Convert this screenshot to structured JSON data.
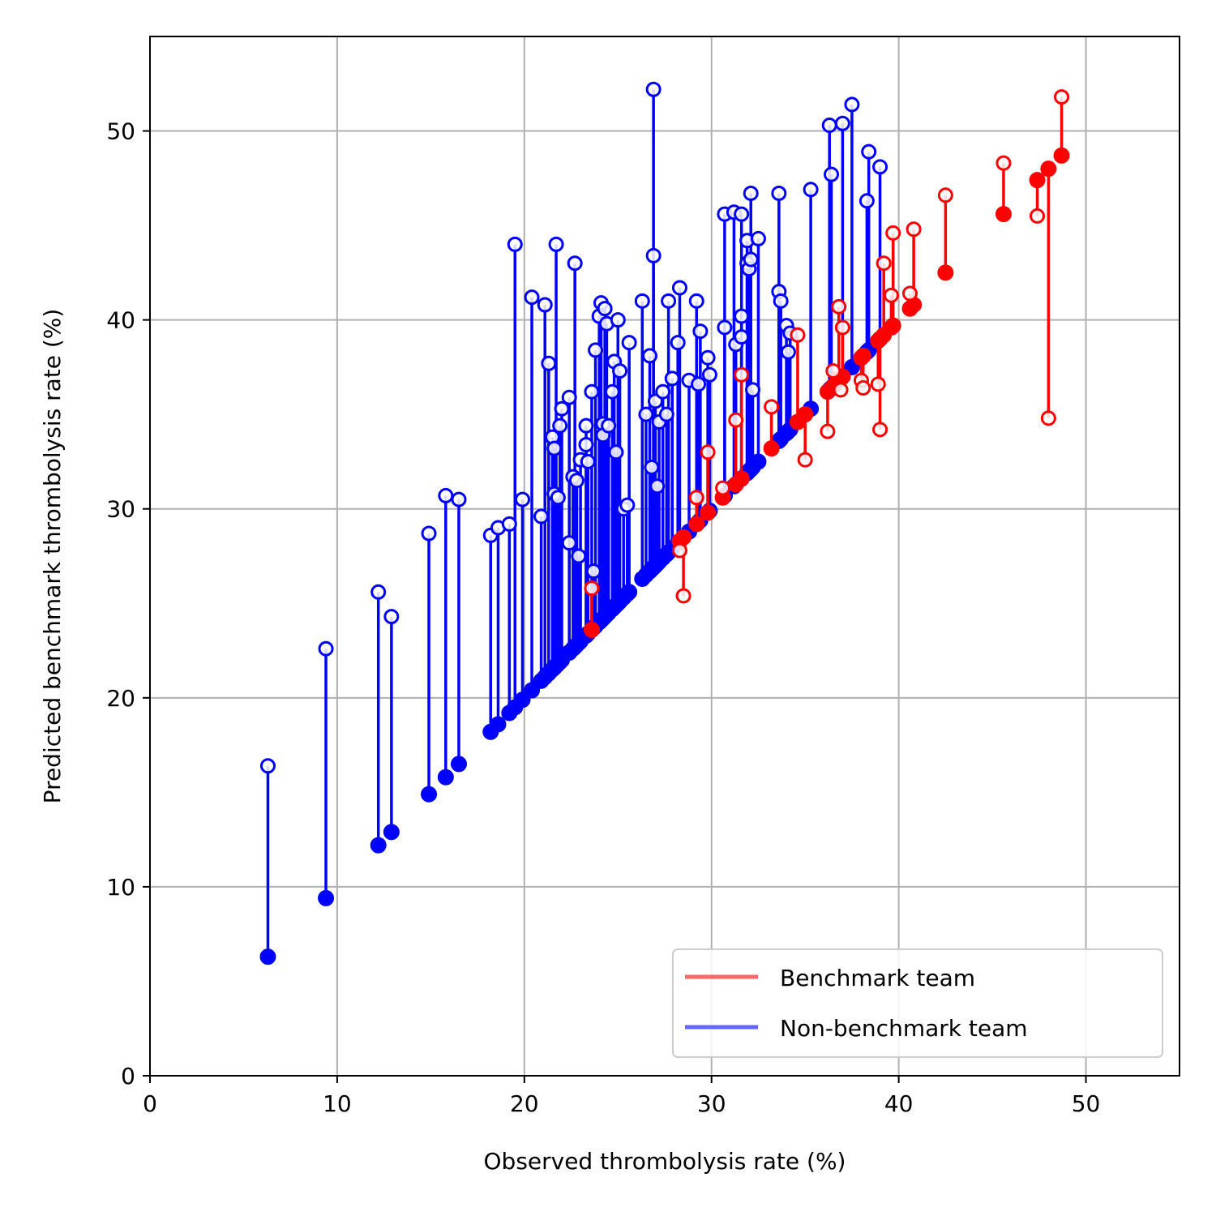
{
  "chart_data": {
    "type": "scatter",
    "xlabel": "Observed thrombolysis rate (%)",
    "ylabel": "Predicted benchmark thrombolysis rate (%)",
    "xlim": [
      0,
      55
    ],
    "ylim": [
      0,
      55
    ],
    "xticks": [
      "0",
      "10",
      "20",
      "30",
      "40",
      "50"
    ],
    "yticks": [
      "0",
      "10",
      "20",
      "30",
      "40",
      "50"
    ],
    "grid": true,
    "legend_position": "bottom-right",
    "colors": {
      "benchmark": "#ff0000",
      "non_benchmark": "#0000ff"
    },
    "series": [
      {
        "name": "Benchmark team",
        "legend_color": "#ff6666",
        "points": [
          [
            23.6,
            25.8
          ],
          [
            28.3,
            27.8
          ],
          [
            28.5,
            25.4
          ],
          [
            29.2,
            30.6
          ],
          [
            29.8,
            33.0
          ],
          [
            30.6,
            31.1
          ],
          [
            31.3,
            34.7
          ],
          [
            31.6,
            37.1
          ],
          [
            33.2,
            35.4
          ],
          [
            34.6,
            39.2
          ],
          [
            35.0,
            32.6
          ],
          [
            36.2,
            34.1
          ],
          [
            36.5,
            37.3
          ],
          [
            36.8,
            40.7
          ],
          [
            36.9,
            36.3
          ],
          [
            37.0,
            39.6
          ],
          [
            38.0,
            36.8
          ],
          [
            38.1,
            36.4
          ],
          [
            38.9,
            36.6
          ],
          [
            39.0,
            34.2
          ],
          [
            39.2,
            43.0
          ],
          [
            39.6,
            41.3
          ],
          [
            39.7,
            44.6
          ],
          [
            40.6,
            41.4
          ],
          [
            40.8,
            44.8
          ],
          [
            42.5,
            46.6
          ],
          [
            45.6,
            48.3
          ],
          [
            47.4,
            45.5
          ],
          [
            48.0,
            34.8
          ],
          [
            48.7,
            51.8
          ]
        ]
      },
      {
        "name": "Non-benchmark team",
        "legend_color": "#6666ff",
        "points": [
          [
            6.3,
            16.4
          ],
          [
            9.4,
            22.6
          ],
          [
            12.2,
            25.6
          ],
          [
            12.9,
            24.3
          ],
          [
            14.9,
            28.7
          ],
          [
            15.8,
            30.7
          ],
          [
            16.5,
            30.5
          ],
          [
            18.2,
            28.6
          ],
          [
            18.6,
            29.0
          ],
          [
            19.2,
            29.2
          ],
          [
            19.5,
            44.0
          ],
          [
            19.9,
            30.5
          ],
          [
            20.4,
            41.2
          ],
          [
            20.9,
            29.6
          ],
          [
            21.1,
            40.8
          ],
          [
            21.3,
            37.7
          ],
          [
            21.5,
            33.8
          ],
          [
            21.6,
            33.2
          ],
          [
            21.6,
            30.8
          ],
          [
            21.7,
            44.0
          ],
          [
            21.8,
            30.6
          ],
          [
            21.9,
            34.4
          ],
          [
            22.0,
            35.3
          ],
          [
            22.4,
            28.2
          ],
          [
            22.4,
            35.9
          ],
          [
            22.6,
            31.7
          ],
          [
            22.7,
            43.0
          ],
          [
            22.8,
            31.5
          ],
          [
            22.9,
            27.5
          ],
          [
            23.0,
            32.6
          ],
          [
            23.3,
            33.4
          ],
          [
            23.3,
            34.4
          ],
          [
            23.4,
            32.5
          ],
          [
            23.6,
            36.2
          ],
          [
            23.7,
            26.7
          ],
          [
            23.8,
            38.4
          ],
          [
            24.0,
            40.2
          ],
          [
            24.1,
            40.9
          ],
          [
            24.2,
            34.5
          ],
          [
            24.2,
            33.9
          ],
          [
            24.3,
            40.6
          ],
          [
            24.4,
            39.8
          ],
          [
            24.5,
            34.4
          ],
          [
            24.7,
            36.2
          ],
          [
            24.8,
            37.8
          ],
          [
            24.9,
            33.0
          ],
          [
            25.0,
            40.0
          ],
          [
            25.1,
            37.3
          ],
          [
            25.3,
            30.0
          ],
          [
            25.5,
            30.2
          ],
          [
            25.6,
            38.8
          ],
          [
            26.3,
            41.0
          ],
          [
            26.5,
            35.0
          ],
          [
            26.7,
            38.1
          ],
          [
            26.8,
            32.2
          ],
          [
            26.9,
            52.2
          ],
          [
            26.9,
            43.4
          ],
          [
            27.0,
            35.7
          ],
          [
            27.1,
            31.2
          ],
          [
            27.2,
            34.6
          ],
          [
            27.4,
            36.2
          ],
          [
            27.6,
            35.0
          ],
          [
            27.7,
            41.0
          ],
          [
            27.9,
            36.9
          ],
          [
            28.2,
            38.8
          ],
          [
            28.3,
            41.7
          ],
          [
            28.8,
            36.8
          ],
          [
            29.2,
            41.0
          ],
          [
            29.3,
            36.6
          ],
          [
            29.4,
            39.4
          ],
          [
            29.8,
            38.0
          ],
          [
            29.9,
            37.1
          ],
          [
            30.7,
            39.6
          ],
          [
            30.7,
            45.6
          ],
          [
            31.2,
            45.7
          ],
          [
            31.3,
            38.7
          ],
          [
            31.6,
            45.6
          ],
          [
            31.6,
            40.2
          ],
          [
            31.6,
            39.1
          ],
          [
            31.9,
            44.2
          ],
          [
            31.9,
            43.0
          ],
          [
            32.0,
            42.7
          ],
          [
            32.1,
            43.2
          ],
          [
            32.1,
            46.7
          ],
          [
            32.2,
            36.3
          ],
          [
            32.5,
            44.3
          ],
          [
            33.6,
            46.7
          ],
          [
            33.6,
            41.5
          ],
          [
            33.7,
            41.0
          ],
          [
            34.0,
            39.7
          ],
          [
            34.1,
            38.3
          ],
          [
            34.2,
            39.3
          ],
          [
            35.3,
            46.9
          ],
          [
            36.3,
            50.3
          ],
          [
            36.4,
            47.7
          ],
          [
            37.0,
            50.4
          ],
          [
            37.5,
            51.4
          ],
          [
            38.3,
            46.3
          ],
          [
            38.4,
            48.9
          ],
          [
            39.0,
            48.1
          ]
        ]
      }
    ]
  }
}
